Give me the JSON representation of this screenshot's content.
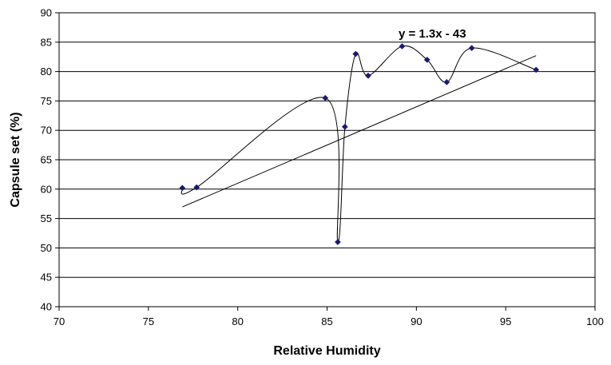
{
  "chart_data": {
    "type": "scatter",
    "title": "",
    "xlabel": "Relative Humidity",
    "ylabel": "Capsule set (%)",
    "xlim": [
      70,
      100
    ],
    "ylim": [
      40,
      90
    ],
    "x_ticks": [
      70,
      75,
      80,
      85,
      90,
      95,
      100
    ],
    "y_ticks": [
      40,
      45,
      50,
      55,
      60,
      65,
      70,
      75,
      80,
      85,
      90
    ],
    "grid": "horizontal",
    "legend": "none",
    "series": [
      {
        "marker_color": "#1a1a6e",
        "smoothed_line": true,
        "x": [
          76.9,
          77.7,
          84.9,
          85.6,
          86.0,
          86.6,
          87.3,
          89.2,
          90.6,
          91.7,
          93.1,
          96.7
        ],
        "y": [
          60.2,
          60.3,
          75.5,
          51.0,
          70.6,
          83.0,
          79.3,
          84.3,
          82.0,
          78.2,
          84.0,
          80.3
        ]
      }
    ],
    "trendline": {
      "label": "y = 1.3x - 43",
      "slope": 1.3,
      "intercept": -43,
      "x_range": [
        76.9,
        96.7
      ],
      "color": "#000000"
    }
  }
}
